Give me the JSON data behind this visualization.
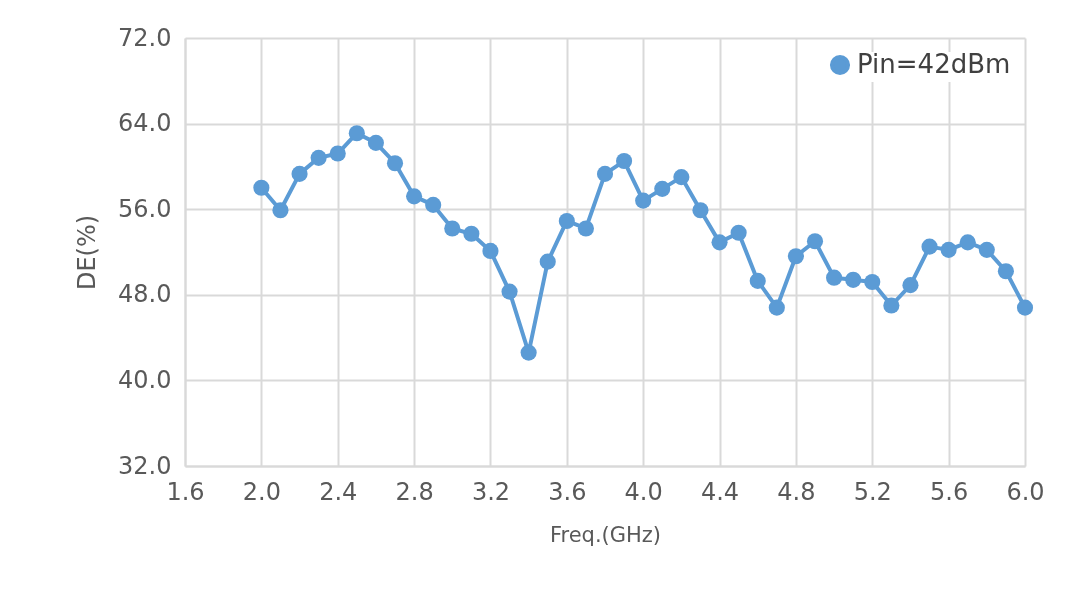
{
  "chart_data": {
    "type": "line",
    "xlabel": "Freq.(GHz)",
    "ylabel": "DE(%)",
    "x": [
      2.0,
      2.1,
      2.2,
      2.3,
      2.4,
      2.5,
      2.6,
      2.7,
      2.8,
      2.9,
      3.0,
      3.1,
      3.2,
      3.3,
      3.4,
      3.5,
      3.6,
      3.7,
      3.8,
      3.9,
      4.0,
      4.1,
      4.2,
      4.3,
      4.4,
      4.5,
      4.6,
      4.7,
      4.8,
      4.9,
      5.0,
      5.1,
      5.2,
      5.3,
      5.4,
      5.5,
      5.6,
      5.7,
      5.8,
      5.9,
      6.0
    ],
    "series": [
      {
        "name": "Pin=42dBm",
        "color": "#5b9bd5",
        "values": [
          58.0,
          55.9,
          59.3,
          60.8,
          61.2,
          63.1,
          62.2,
          60.3,
          57.2,
          56.4,
          54.2,
          53.7,
          52.1,
          48.3,
          42.6,
          51.1,
          54.9,
          54.2,
          59.3,
          60.5,
          56.8,
          57.9,
          59.0,
          55.9,
          52.9,
          53.8,
          49.3,
          46.8,
          51.6,
          53.0,
          49.6,
          49.4,
          49.2,
          47.0,
          48.9,
          52.5,
          52.2,
          52.9,
          52.2,
          50.2,
          46.8
        ]
      }
    ],
    "xlim": [
      1.6,
      6.0
    ],
    "xticks": [
      {
        "value": 1.6,
        "label": "1.6"
      },
      {
        "value": 2.0,
        "label": "2.0"
      },
      {
        "value": 2.4,
        "label": "2.4"
      },
      {
        "value": 2.8,
        "label": "2.8"
      },
      {
        "value": 3.2,
        "label": "3.2"
      },
      {
        "value": 3.6,
        "label": "3.6"
      },
      {
        "value": 4.0,
        "label": "4.0"
      },
      {
        "value": 4.4,
        "label": "4.4"
      },
      {
        "value": 4.8,
        "label": "4.8"
      },
      {
        "value": 5.2,
        "label": "5.2"
      },
      {
        "value": 5.6,
        "label": "5.6"
      },
      {
        "value": 6.0,
        "label": "6.0"
      }
    ],
    "ylim": [
      32,
      72
    ],
    "yticks": [
      {
        "value": 32,
        "label": "32.0"
      },
      {
        "value": 40,
        "label": "40.0"
      },
      {
        "value": 48,
        "label": "48.0"
      },
      {
        "value": 56,
        "label": "56.0"
      },
      {
        "value": 64,
        "label": "64.0"
      },
      {
        "value": 72,
        "label": "72.0"
      }
    ],
    "grid": true,
    "legend": "top right",
    "marker": "circle",
    "line_style": "solid"
  }
}
